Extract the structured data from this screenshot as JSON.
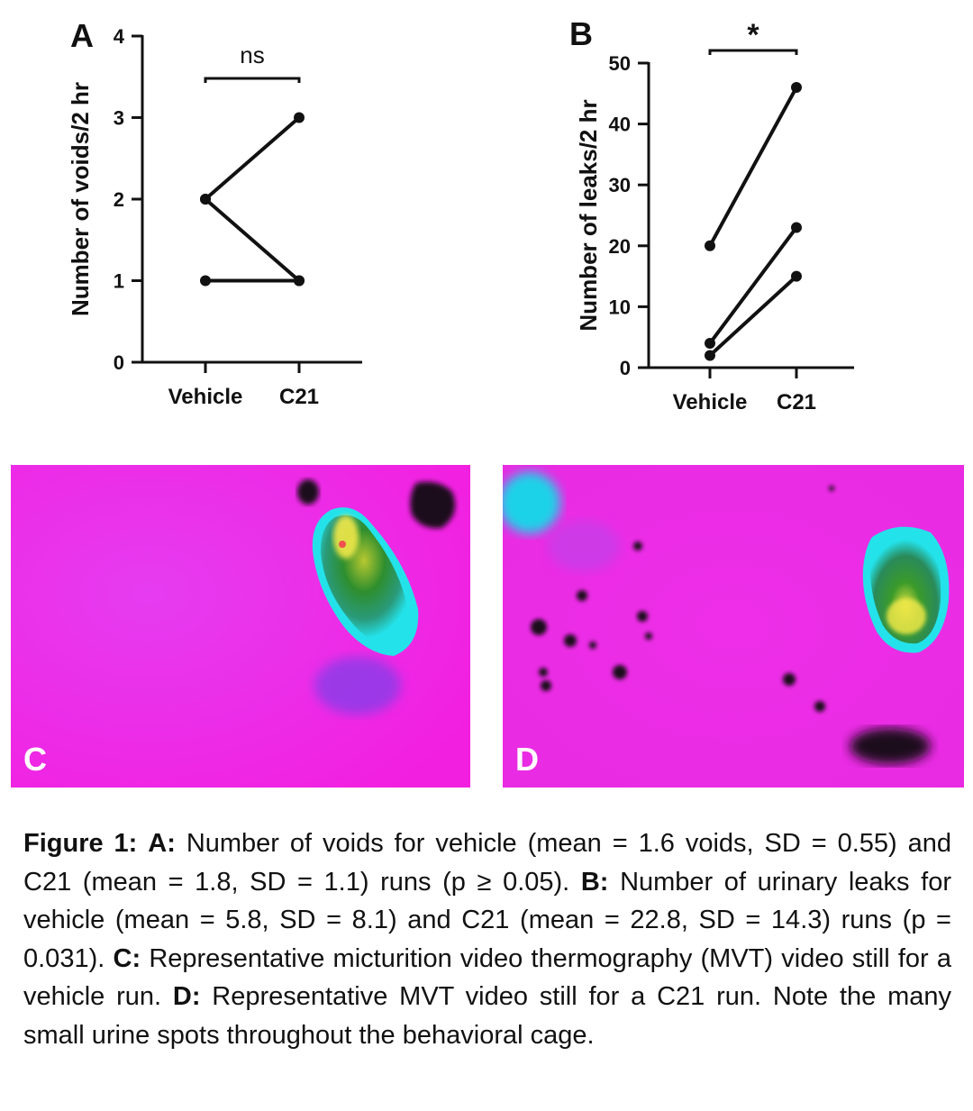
{
  "chart_data": [
    {
      "panel": "A",
      "type": "line",
      "categories": [
        "Vehicle",
        "C21"
      ],
      "ylabel": "Number of voids/2 hr",
      "ylim": [
        0,
        4
      ],
      "yticks": [
        0,
        1,
        2,
        3,
        4
      ],
      "grid": false,
      "significance": "ns",
      "pairs": [
        {
          "values": [
            2,
            3
          ]
        },
        {
          "values": [
            2,
            1
          ]
        },
        {
          "values": [
            1,
            1
          ]
        }
      ]
    },
    {
      "panel": "B",
      "type": "line",
      "categories": [
        "Vehicle",
        "C21"
      ],
      "ylabel": "Number of leaks/2 hr",
      "ylim": [
        0,
        50
      ],
      "yticks": [
        0,
        10,
        20,
        30,
        40,
        50
      ],
      "grid": false,
      "significance": "*",
      "pairs": [
        {
          "values": [
            20,
            46
          ]
        },
        {
          "values": [
            4,
            23
          ]
        },
        {
          "values": [
            2,
            15
          ]
        }
      ]
    }
  ],
  "images": {
    "c_letter": "C",
    "d_letter": "D",
    "colors": {
      "background": "#ee22e6",
      "mouse_body": "#2a8f2a",
      "mouse_edge": "#22e0e8",
      "hot_spot": "#f2f24a",
      "urine_spot": "#1a0a1a"
    }
  },
  "caption": {
    "fig_label": "Figure 1:",
    "a_label": "A:",
    "a_text": "Number of voids for vehicle (mean = 1.6 voids, SD = 0.55) and C21 (mean = 1.8, SD = 1.1) runs (p ≥ 0.05).",
    "b_label": "B:",
    "b_text": "Number of urinary leaks for vehicle (mean = 5.8, SD = 8.1) and C21 (mean = 22.8, SD = 14.3) runs (p = 0.031).",
    "c_label": "C:",
    "c_text": "Representative micturition video thermography (MVT) video still for a vehicle run.",
    "d_label": "D:",
    "d_text": "Representative MVT video still for a C21 run. Note the many small urine spots throughout the behavioral cage."
  }
}
